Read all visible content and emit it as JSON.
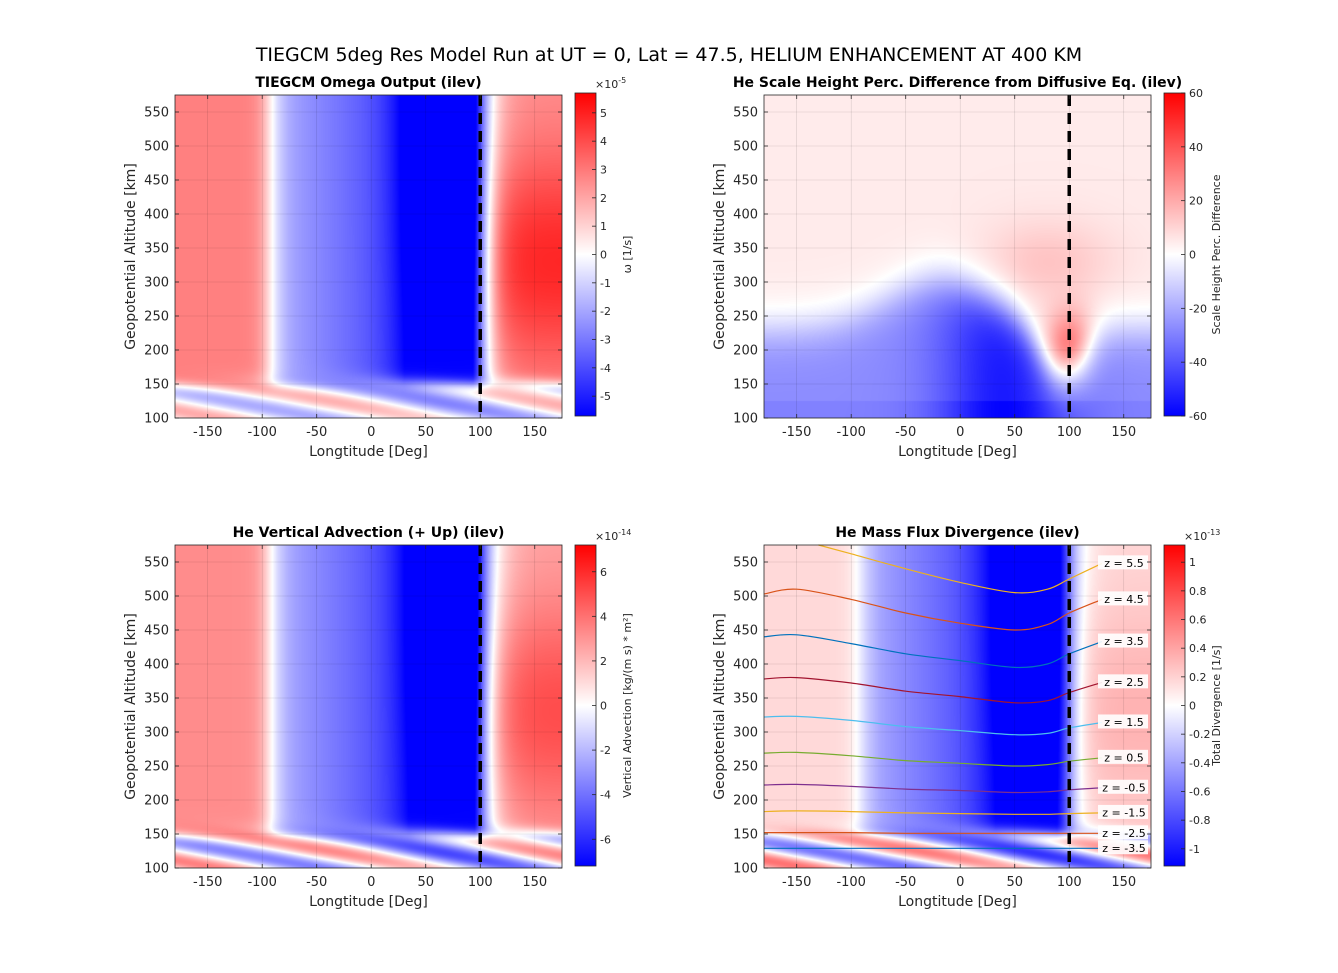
{
  "figure": {
    "suptitle": "TIEGCM 5deg Res Model Run at UT = 0, Lat = 47.5, HELIUM ENHANCEMENT AT 400 KM",
    "colormap": {
      "negative": "#0000ff",
      "zero": "#ffffff",
      "positive": "#ff0000"
    },
    "reference_line_color": "#000000",
    "grid": true
  },
  "chart_data": [
    {
      "type": "heatmap",
      "title": "TIEGCM Omega Output (ilev)",
      "xlabel": "Longtitude [Deg]",
      "ylabel": "Geopotential Altitude [km]",
      "xlim": [
        -180,
        175
      ],
      "ylim": [
        100,
        575
      ],
      "xticks": [
        "-150",
        "-100",
        "-50",
        "0",
        "50",
        "100",
        "150"
      ],
      "yticks": [
        "100",
        "150",
        "200",
        "250",
        "300",
        "350",
        "400",
        "450",
        "500",
        "550"
      ],
      "reference_line_x": 100,
      "colorbar": {
        "label": "ω [1/s]",
        "exponent": "×10",
        "exponent_power": "-5",
        "clim": [
          -5.7,
          5.7
        ],
        "ticks": [
          "-5",
          "-4",
          "-3",
          "-2",
          "-1",
          "0",
          "1",
          "2",
          "3",
          "4",
          "5"
        ]
      },
      "field": {
        "east_max": 0.85,
        "west_pos": 0.5,
        "min_center_lon": 70,
        "min_depth": -0.95,
        "layer_strength": 0.6
      }
    },
    {
      "type": "heatmap",
      "title": "He Scale Height Perc. Difference from Diffusive Eq. (ilev)",
      "xlabel": "Longtitude [Deg]",
      "ylabel": "Geopotential Altitude [km]",
      "xlim": [
        -180,
        175
      ],
      "ylim": [
        100,
        575
      ],
      "xticks": [
        "-150",
        "-100",
        "-50",
        "0",
        "50",
        "100",
        "150"
      ],
      "yticks": [
        "100",
        "150",
        "200",
        "250",
        "300",
        "350",
        "400",
        "450",
        "500",
        "550"
      ],
      "reference_line_x": 100,
      "colorbar": {
        "label": "Scale Height Perc. Difference",
        "exponent": "",
        "exponent_power": "",
        "clim": [
          -60,
          60
        ],
        "ticks": [
          "-60",
          "-40",
          "-20",
          "0",
          "20",
          "40",
          "60"
        ]
      },
      "field": {
        "upper_value": 0.08,
        "low_negative": -0.9,
        "peak_lon": 100,
        "peak_alt": 200,
        "peak_value": 0.55
      }
    },
    {
      "type": "heatmap",
      "title": "He Vertical Advection (+ Up) (ilev)",
      "xlabel": "Longtitude [Deg]",
      "ylabel": "Geopotential Altitude [km]",
      "xlim": [
        -180,
        175
      ],
      "ylim": [
        100,
        575
      ],
      "xticks": [
        "-150",
        "-100",
        "-50",
        "0",
        "50",
        "100",
        "150"
      ],
      "yticks": [
        "100",
        "150",
        "200",
        "250",
        "300",
        "350",
        "400",
        "450",
        "500",
        "550"
      ],
      "reference_line_x": 100,
      "colorbar": {
        "label": "Vertical Advection [kg/(m s) * m²]",
        "exponent": "×10",
        "exponent_power": "-14",
        "clim": [
          -7.2,
          7.2
        ],
        "ticks": [
          "-6",
          "-4",
          "-2",
          "0",
          "2",
          "4",
          "6"
        ]
      },
      "field": {
        "east_max": 0.7,
        "west_pos": 0.45,
        "min_center_lon": 75,
        "min_depth": -0.95,
        "layer_strength": 0.9
      }
    },
    {
      "type": "heatmap",
      "title": "He Mass Flux Divergence (ilev)",
      "xlabel": "Longtitude [Deg]",
      "ylabel": "Geopotential Altitude [km]",
      "xlim": [
        -180,
        175
      ],
      "ylim": [
        100,
        575
      ],
      "xticks": [
        "-150",
        "-100",
        "-50",
        "0",
        "50",
        "100",
        "150"
      ],
      "yticks": [
        "100",
        "150",
        "200",
        "250",
        "300",
        "350",
        "400",
        "450",
        "500",
        "550"
      ],
      "reference_line_x": 100,
      "colorbar": {
        "label": "Total Divergence [1/s]",
        "exponent": "×10",
        "exponent_power": "-13",
        "clim": [
          -1.12,
          1.12
        ],
        "ticks": [
          "-1",
          "-0.8",
          "-0.6",
          "-0.4",
          "-0.2",
          "0",
          "0.2",
          "0.4",
          "0.6",
          "0.8",
          "1"
        ]
      },
      "field": {
        "east_max": 0.3,
        "west_pos": 0.15,
        "min_center_lon": 65,
        "min_depth": -0.65,
        "layer_strength": 1.0
      },
      "contours": [
        {
          "label": "z = 5.5",
          "color": "#EDB120",
          "lon": [
            -130,
            -100,
            -50,
            0,
            50,
            80,
            100,
            130
          ],
          "alt": [
            575,
            562,
            540,
            520,
            505,
            510,
            525,
            548
          ]
        },
        {
          "label": "z = 4.5",
          "color": "#D95319",
          "lon": [
            -180,
            -150,
            -100,
            -50,
            0,
            50,
            80,
            100,
            130
          ],
          "alt": [
            503,
            510,
            495,
            475,
            460,
            450,
            458,
            475,
            495
          ]
        },
        {
          "label": "z = 3.5",
          "color": "#0072BD",
          "lon": [
            -180,
            -150,
            -100,
            -50,
            0,
            50,
            80,
            100,
            130
          ],
          "alt": [
            440,
            443,
            430,
            415,
            405,
            395,
            400,
            415,
            433
          ]
        },
        {
          "label": "z = 2.5",
          "color": "#A2142F",
          "lon": [
            -180,
            -150,
            -100,
            -50,
            0,
            50,
            80,
            100,
            130
          ],
          "alt": [
            378,
            380,
            372,
            360,
            352,
            343,
            346,
            358,
            373
          ]
        },
        {
          "label": "z = 1.5",
          "color": "#4DBEEE",
          "lon": [
            -180,
            -150,
            -100,
            -50,
            0,
            50,
            80,
            100,
            130
          ],
          "alt": [
            322,
            323,
            317,
            308,
            302,
            296,
            298,
            306,
            314
          ]
        },
        {
          "label": "z = 0.5",
          "color": "#77AC30",
          "lon": [
            -180,
            -150,
            -100,
            -50,
            0,
            50,
            80,
            100,
            130
          ],
          "alt": [
            269,
            270,
            265,
            258,
            254,
            250,
            252,
            257,
            262
          ]
        },
        {
          "label": "z = -0.5",
          "color": "#7E2F8E",
          "lon": [
            -180,
            -150,
            -100,
            -50,
            0,
            50,
            80,
            100,
            130
          ],
          "alt": [
            222,
            223,
            220,
            216,
            214,
            211,
            212,
            215,
            218
          ]
        },
        {
          "label": "z = -1.5",
          "color": "#EDB120",
          "lon": [
            -180,
            -150,
            -100,
            -50,
            0,
            50,
            80,
            100,
            130
          ],
          "alt": [
            183,
            184,
            183,
            181,
            180,
            179,
            179,
            180,
            181
          ]
        },
        {
          "label": "z = -2.5",
          "color": "#D95319",
          "lon": [
            -180,
            -150,
            -100,
            -50,
            0,
            50,
            80,
            100,
            130
          ],
          "alt": [
            152,
            152,
            152,
            151,
            151,
            151,
            151,
            151,
            151
          ]
        },
        {
          "label": "z = -3.5",
          "color": "#0072BD",
          "lon": [
            -180,
            -150,
            -100,
            -50,
            0,
            50,
            80,
            100,
            130
          ],
          "alt": [
            129,
            129,
            129,
            129,
            129,
            129,
            129,
            129,
            129
          ]
        }
      ]
    }
  ]
}
